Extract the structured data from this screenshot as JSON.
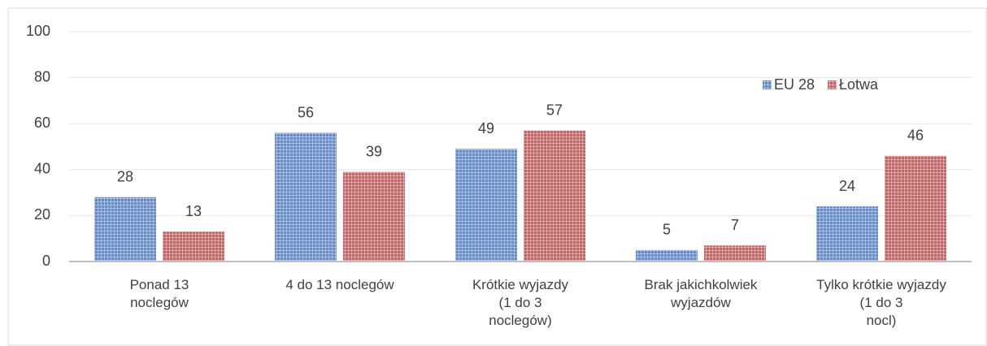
{
  "chart_data": {
    "type": "bar",
    "categories": [
      "Ponad 13\nnoclegów",
      "4 do 13 noclegów",
      "Krótkie wyjazdy\n(1 do 3\nnoclegów)",
      "Brak jakichkolwiek\nwyjazdów",
      "Tylko krótkie wyjazdy\n(1 do 3\nnocl)"
    ],
    "series": [
      {
        "name": "EU 28",
        "color": "#5b8ad2",
        "values": [
          28,
          56,
          49,
          5,
          24
        ]
      },
      {
        "name": "Łotwa",
        "color": "#cf5e60",
        "values": [
          13,
          39,
          57,
          7,
          46
        ]
      }
    ],
    "ylim": [
      0,
      100
    ],
    "yticks": [
      0,
      20,
      40,
      60,
      80,
      100
    ],
    "grid": true,
    "legend": "top-right"
  }
}
